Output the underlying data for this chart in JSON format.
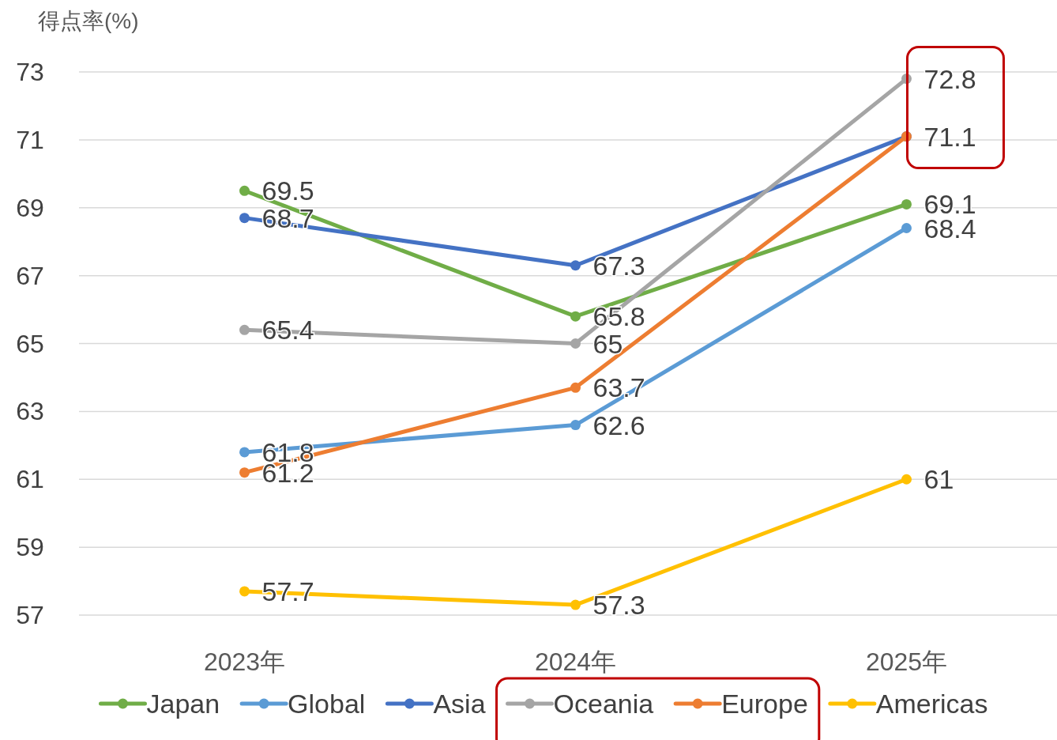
{
  "chart_data": {
    "type": "line",
    "ylabel": "得点率(%)",
    "categories": [
      "2023年",
      "2024年",
      "2025年"
    ],
    "series": [
      {
        "name": "Japan",
        "color": "#70ad47",
        "values": [
          69.5,
          65.8,
          69.1
        ],
        "value_labels": [
          "69.5",
          "65.8",
          "69.1"
        ]
      },
      {
        "name": "Global",
        "color": "#5b9bd5",
        "values": [
          61.8,
          62.6,
          68.4
        ],
        "value_labels": [
          "61.8",
          "62.6",
          "68.4"
        ]
      },
      {
        "name": "Asia",
        "color": "#4472c4",
        "values": [
          68.7,
          67.3,
          71.1
        ],
        "value_labels": [
          "68.7",
          "67.3",
          "71.1"
        ]
      },
      {
        "name": "Oceania",
        "color": "#a5a5a5",
        "values": [
          65.4,
          65,
          72.8
        ],
        "value_labels": [
          "65.4",
          "65",
          "72.8"
        ]
      },
      {
        "name": "Europe",
        "color": "#ed7d31",
        "values": [
          61.2,
          63.7,
          71.1
        ],
        "value_labels": [
          "61.2",
          "63.7",
          null
        ]
      },
      {
        "name": "Americas",
        "color": "#ffc000",
        "values": [
          57.7,
          57.3,
          61
        ],
        "value_labels": [
          "57.7",
          "57.3",
          "61"
        ]
      }
    ],
    "ylim": [
      57,
      73
    ],
    "yticks": [
      57,
      59,
      61,
      63,
      65,
      67,
      69,
      71,
      73
    ],
    "grid": "y",
    "legend": "bottom",
    "marker": "circle"
  }
}
